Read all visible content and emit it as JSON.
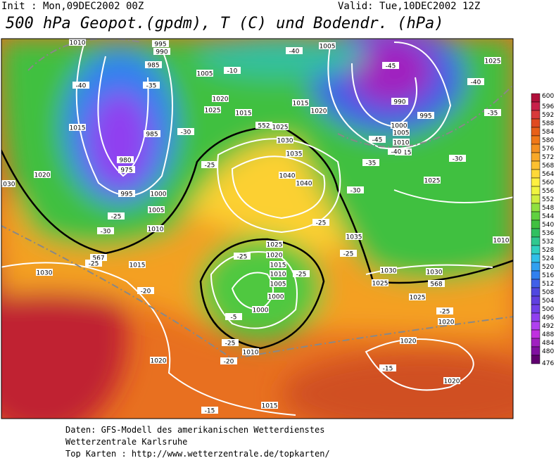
{
  "header": {
    "init": "Init : Mon,09DEC2002 00Z",
    "valid": "Valid: Tue,10DEC2002 12Z",
    "title": "500 hPa Geopot.(gpdm), T (C) und Bodendr. (hPa)"
  },
  "map": {
    "contour_labels": [
      "1010",
      "995",
      "990",
      "985",
      "1005",
      "-10",
      "-40",
      "1005",
      "-45",
      "1025",
      "-40",
      "-40",
      "-35",
      "1020",
      "1025",
      "1015",
      "-35",
      "1015",
      "1020",
      "990",
      "995",
      "1000",
      "1005",
      "1010",
      "1015",
      "-45",
      "-40",
      "-35",
      "-30",
      "1015",
      "985",
      "-30",
      "552",
      "1025",
      "1030",
      "1035",
      "-25",
      "1020",
      "980",
      "975",
      "995",
      "1000",
      "1040",
      "1040",
      "1025",
      "-30",
      "1030",
      "1005",
      "-25",
      "1010",
      "-30",
      "-25",
      "1035",
      "1010",
      "1025",
      "-25",
      "-25",
      "1020",
      "567",
      "1015",
      "-25",
      "1015",
      "-25",
      "1010",
      "1030",
      "1030",
      "1030",
      "1005",
      "1025",
      "568",
      "-20",
      "1000",
      "1025",
      "1000",
      "-25",
      "-5",
      "1020",
      "-25",
      "1020",
      "1010",
      "-20",
      "1020",
      "-15",
      "1020",
      "-15",
      "1015"
    ]
  },
  "legend": {
    "labels": [
      "600",
      "596",
      "592",
      "588",
      "584",
      "580",
      "576",
      "572",
      "568",
      "564",
      "560",
      "556",
      "552",
      "548",
      "544",
      "540",
      "536",
      "532",
      "528",
      "524",
      "520",
      "516",
      "512",
      "508",
      "504",
      "500",
      "496",
      "492",
      "488",
      "484",
      "480",
      "476"
    ],
    "colors": [
      "#b0103a",
      "#c8204a",
      "#d83a3a",
      "#e04a20",
      "#e86018",
      "#f07818",
      "#f49020",
      "#f8a828",
      "#fcc030",
      "#fed838",
      "#fff040",
      "#f0f440",
      "#d0ee40",
      "#90e040",
      "#60d040",
      "#40c040",
      "#30c060",
      "#30c890",
      "#30d0c0",
      "#30c0e8",
      "#30a0f0",
      "#3080f0",
      "#4060e8",
      "#5048e0",
      "#6040e0",
      "#7040e8",
      "#9040f0",
      "#b040f0",
      "#c030e0",
      "#a020c0",
      "#8010a0",
      "#600070"
    ]
  },
  "footer": {
    "line1": "Daten: GFS-Modell des amerikanischen Wetterdienstes",
    "line2": "Wetterzentrale Karlsruhe",
    "line3": "Top Karten :  http://www.wetterzentrale.de/topkarten/"
  }
}
